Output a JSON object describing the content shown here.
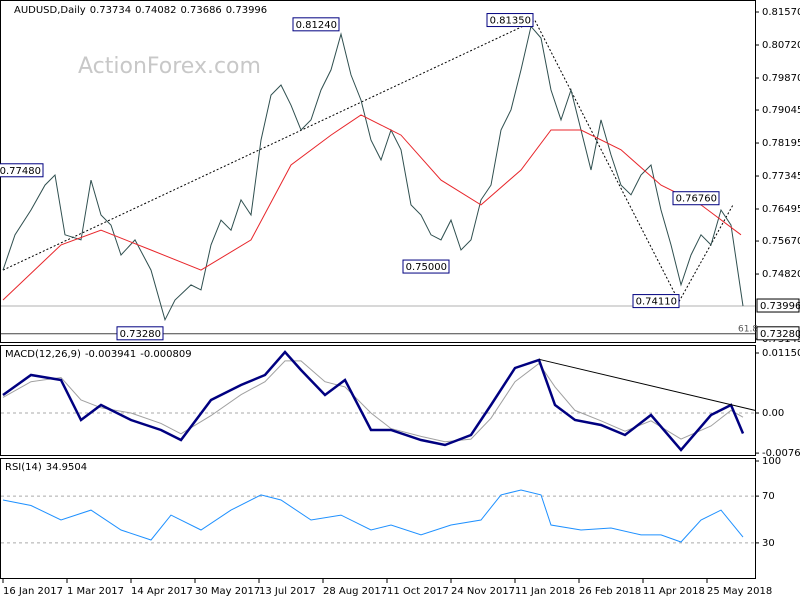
{
  "chart_data": {
    "type": "line",
    "symbol": "AUDUSD,Daily",
    "ohlc": [
      0.73734,
      0.74082,
      0.73686,
      0.73996
    ],
    "watermark": "ActionForex.com",
    "xlim": [
      0,
      376
    ],
    "xticks": [
      {
        "value": 0,
        "label": "16 Jan 2017"
      },
      {
        "value": 32,
        "label": "1 Mar 2017"
      },
      {
        "value": 64,
        "label": "14 Apr 2017"
      },
      {
        "value": 96,
        "label": "30 May 2017"
      },
      {
        "value": 128,
        "label": "13 Jul 2017"
      },
      {
        "value": 160,
        "label": "28 Aug 2017"
      },
      {
        "value": 192,
        "label": "11 Oct 2017"
      },
      {
        "value": 224,
        "label": "24 Nov 2017"
      },
      {
        "value": 256,
        "label": "11 Jan 2018"
      },
      {
        "value": 288,
        "label": "26 Feb 2018"
      },
      {
        "value": 320,
        "label": "11 Apr 2018"
      },
      {
        "value": 352,
        "label": "25 May 2018"
      }
    ],
    "ylim": [
      0.73069,
      0.81828
    ],
    "yticks": [
      {
        "value": 0.8157,
        "label": "0.81570"
      },
      {
        "value": 0.8072,
        "label": "0.80720"
      },
      {
        "value": 0.7987,
        "label": "0.79870"
      },
      0.79045,
      0.78195,
      0.77345,
      0.76495,
      {
        "value": 0.7567,
        "label": "0.75670"
      },
      {
        "value": 0.7482,
        "label": "0.74820"
      },
      0.73145
    ],
    "series": [
      {
        "color": "#2f4f4f",
        "x": [
          0,
          6,
          14,
          21,
          26,
          31,
          39,
          44,
          49,
          54,
          59,
          66,
          74,
          81,
          86,
          94,
          99,
          104,
          109,
          114,
          119,
          124,
          129,
          134,
          139,
          144,
          149,
          154,
          159,
          164,
          169,
          174,
          179,
          184,
          189,
          194,
          199,
          204,
          209,
          214,
          219,
          224,
          229,
          234,
          239,
          244,
          249,
          254,
          259,
          264,
          269,
          274,
          279,
          284,
          289,
          294,
          299,
          304,
          309,
          314,
          319,
          324,
          329,
          334,
          339,
          344,
          349,
          354,
          359,
          364,
          370
        ],
        "values": [
          0.7492,
          0.7583,
          0.7647,
          0.7711,
          0.7737,
          0.7583,
          0.757,
          0.7724,
          0.7634,
          0.7608,
          0.7531,
          0.757,
          0.7492,
          0.7364,
          0.7415,
          0.7454,
          0.7441,
          0.7557,
          0.7621,
          0.7595,
          0.7673,
          0.7634,
          0.7827,
          0.7943,
          0.7969,
          0.7917,
          0.7853,
          0.7879,
          0.7956,
          0.8008,
          0.81,
          0.7995,
          0.793,
          0.7827,
          0.7776,
          0.7853,
          0.7802,
          0.766,
          0.7634,
          0.7583,
          0.757,
          0.7621,
          0.7544,
          0.757,
          0.7673,
          0.7711,
          0.7853,
          0.7905,
          0.8008,
          0.812,
          0.809,
          0.7956,
          0.7879,
          0.7956,
          0.7853,
          0.775,
          0.7879,
          0.7789,
          0.7711,
          0.7686,
          0.7737,
          0.7763,
          0.7647,
          0.7557,
          0.7454,
          0.7531,
          0.7583,
          0.7557,
          0.7647,
          0.7608,
          0.73996
        ]
      },
      {
        "color": "#e8262b",
        "x": [
          0,
          29,
          49,
          74,
          99,
          124,
          144,
          164,
          179,
          199,
          219,
          239,
          259,
          274,
          289,
          309,
          329,
          349,
          369
        ],
        "values": [
          0.7415,
          0.7557,
          0.7595,
          0.7544,
          0.7492,
          0.757,
          0.7763,
          0.784,
          0.7892,
          0.784,
          0.7724,
          0.766,
          0.775,
          0.7853,
          0.7853,
          0.7802,
          0.7711,
          0.766,
          0.7583
        ]
      }
    ],
    "trendlines": [
      {
        "x": [
          0,
          266
        ],
        "values": [
          0.7492,
          0.8135
        ]
      },
      {
        "x": [
          266,
          338
        ],
        "values": [
          0.8135,
          0.7411
        ]
      },
      {
        "x": [
          338,
          365
        ],
        "values": [
          0.7411,
          0.766
        ]
      }
    ],
    "annotations": [
      {
        "x": 21,
        "value": 0.7748,
        "label": "0.77480"
      },
      {
        "x": 169,
        "value": 0.8124,
        "label": "0.81240"
      },
      {
        "x": 266,
        "value": 0.8135,
        "label": "0.81350"
      },
      {
        "x": 224,
        "value": 0.75,
        "label": "0.75000"
      },
      {
        "x": 359,
        "value": 0.7676,
        "label": "0.76760"
      },
      {
        "x": 339,
        "value": 0.7411,
        "label": "0.74110"
      },
      {
        "x": 81,
        "value": 0.7328,
        "label": "0.73280"
      }
    ],
    "fib_label": "61.8",
    "macd": {
      "title": "MACD(12,26,9)",
      "readout": [
        -0.003941,
        -0.000809
      ],
      "ylim": [
        -0.00806,
        0.01266
      ],
      "yticks": [
        0.011508,
        {
          "value": 0,
          "label": "0.00"
        },
        -0.007694
      ],
      "x": [
        0,
        14,
        29,
        39,
        49,
        64,
        79,
        89,
        104,
        119,
        131,
        141,
        149,
        161,
        171,
        184,
        194,
        209,
        221,
        234,
        244,
        256,
        268,
        276,
        286,
        299,
        311,
        324,
        339,
        354,
        364,
        370
      ],
      "main": [
        0.00345,
        0.00729,
        0.00633,
        -0.00134,
        0.00153,
        -0.00134,
        -0.00326,
        -0.00518,
        0.00249,
        0.00537,
        0.00729,
        0.0117,
        0.00825,
        0.00345,
        0.00633,
        -0.00326,
        -0.00326,
        -0.00518,
        -0.00614,
        -0.00422,
        0.00153,
        0.00863,
        0.01017,
        0.00153,
        -0.00134,
        -0.0023,
        -0.00422,
        -0.00038,
        -0.0071,
        -0.00038,
        0.00153,
        -0.003941
      ],
      "signal": [
        0.003,
        0.006,
        0.0068,
        0.0025,
        0.001,
        0,
        -0.002,
        -0.004,
        -0.0005,
        0.0035,
        0.006,
        0.01,
        0.01,
        0.006,
        0.005,
        0,
        -0.003,
        -0.0045,
        -0.0055,
        -0.005,
        -0.001,
        0.006,
        0.0095,
        0.005,
        0.0005,
        -0.0015,
        -0.0035,
        -0.0015,
        -0.005,
        -0.0025,
        0.0005,
        -0.000809
      ],
      "main_color": "#000080",
      "signal_color": "#a0a0a0",
      "trendline": {
        "x": [
          268,
          376
        ],
        "values": [
          0.0103,
          0.0005
        ]
      }
    },
    "rsi": {
      "title": "RSI(14)",
      "readout": 34.9504,
      "ylim": [
        0,
        100
      ],
      "yticks": [
        100,
        70,
        30
      ],
      "color": "#1e90ff",
      "x": [
        0,
        14,
        29,
        44,
        59,
        74,
        84,
        99,
        114,
        129,
        139,
        154,
        169,
        184,
        194,
        209,
        224,
        239,
        249,
        259,
        269,
        274,
        289,
        304,
        319,
        329,
        339,
        349,
        359,
        370
      ],
      "values": [
        66.7,
        62,
        49.6,
        58,
        41,
        32.5,
        53.8,
        41,
        58,
        71,
        66.7,
        49.6,
        53.8,
        41,
        45.3,
        36.8,
        45.3,
        49.6,
        71,
        75.2,
        71,
        45.3,
        41,
        42.7,
        36.8,
        36.8,
        30.8,
        49.6,
        58,
        34.9504
      ]
    }
  }
}
